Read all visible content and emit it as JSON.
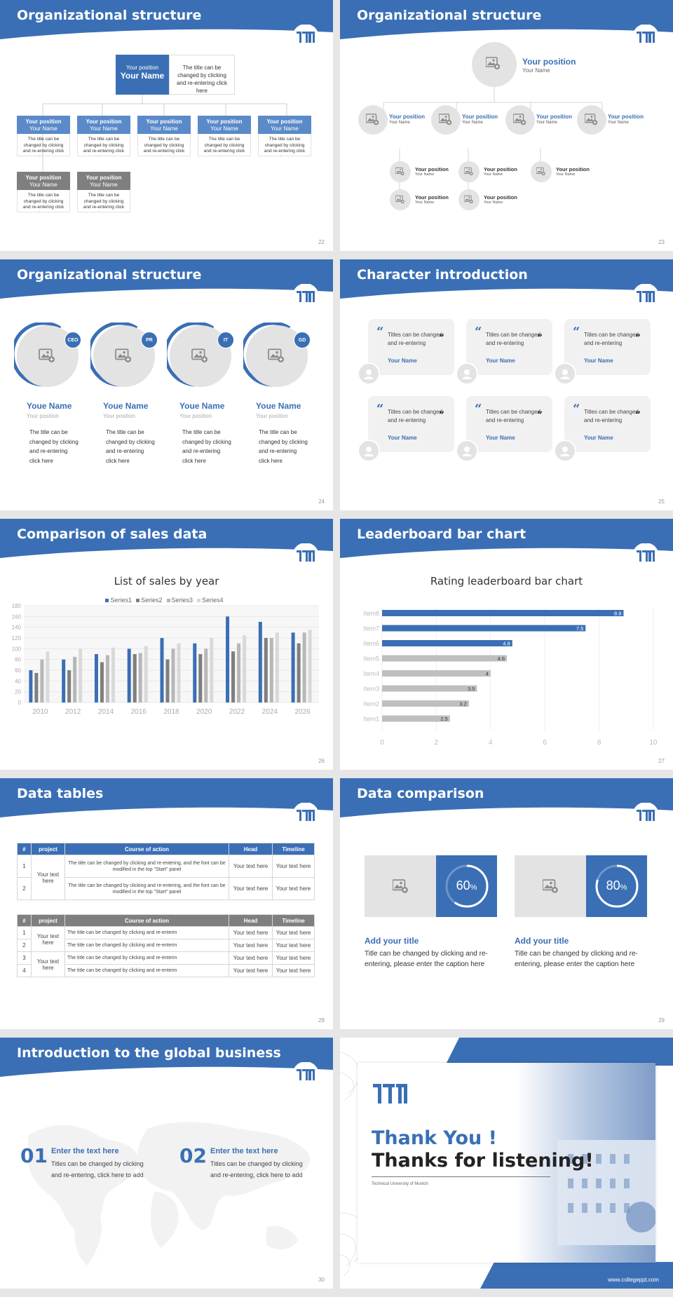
{
  "slides": [
    {
      "title": "Organizational structure",
      "num": "22"
    },
    {
      "title": "Organizational structure",
      "num": "23"
    },
    {
      "title": "Organizational structure",
      "num": "24"
    },
    {
      "title": "Character introduction",
      "num": "25"
    },
    {
      "title": "Comparison of sales data",
      "num": "26"
    },
    {
      "title": "Leaderboard bar chart",
      "num": "27"
    },
    {
      "title": "Data tables",
      "num": "28"
    },
    {
      "title": "Data comparison",
      "num": "29"
    },
    {
      "title": "Introduction to the global business",
      "num": "30"
    }
  ],
  "logo_text": "TUM",
  "org1": {
    "top_pos": "Your position",
    "top_name": "Your Name",
    "top_desc": "The title can be changed by clicking and re-entering click here",
    "box_pos": "Your position",
    "box_name": "Your Name",
    "box_desc": "The title can be changed by clicking and re-entering click here"
  },
  "org2": {
    "top_pos": "Your position",
    "top_name": "Your Name",
    "pos": "Your position",
    "name": "Your Name"
  },
  "org3": {
    "members": [
      {
        "badge": "CEO",
        "name": "Youe Name",
        "pos": "Your position",
        "desc": "The title can be changed by clicking and re-entering click here"
      },
      {
        "badge": "PR",
        "name": "Youe Name",
        "pos": "Your position",
        "desc": "The title can be changed by clicking and re-entering click here"
      },
      {
        "badge": "IT",
        "name": "Youe Name",
        "pos": "Your position",
        "desc": "The title can be changed by clicking and re-entering click here"
      },
      {
        "badge": "GD",
        "name": "Youe Name",
        "pos": "Your position",
        "desc": "The title can be changed by clicking and re-entering click here"
      }
    ]
  },
  "chars": {
    "text": "Titles can be changed and re-entering",
    "name": "Your Name"
  },
  "chart_data": [
    {
      "type": "bar",
      "title": "List of sales by year",
      "categories": [
        "2010",
        "2012",
        "2014",
        "2016",
        "2018",
        "2020",
        "2022",
        "2024",
        "2026"
      ],
      "ylim": [
        0,
        180
      ],
      "yticks": [
        0,
        20,
        40,
        60,
        80,
        100,
        120,
        140,
        160,
        180
      ],
      "series": [
        {
          "name": "Series1",
          "color": "#3a6fb5",
          "values": [
            60,
            80,
            90,
            100,
            120,
            110,
            160,
            150,
            130
          ]
        },
        {
          "name": "Series2",
          "color": "#7f7f7f",
          "values": [
            55,
            60,
            75,
            90,
            80,
            90,
            95,
            120,
            110
          ]
        },
        {
          "name": "Series3",
          "color": "#b7b7b7",
          "values": [
            80,
            85,
            88,
            92,
            100,
            100,
            110,
            120,
            130
          ]
        },
        {
          "name": "Series4",
          "color": "#d9d9d9",
          "values": [
            95,
            100,
            102,
            105,
            110,
            120,
            125,
            130,
            135
          ]
        }
      ],
      "legend": "top"
    },
    {
      "type": "bar",
      "orientation": "horizontal",
      "title": "Rating leaderboard bar chart",
      "categories": [
        "Item8",
        "Item7",
        "Item6",
        "Item5",
        "Item4",
        "Item3",
        "Item2",
        "Item1"
      ],
      "values": [
        8.9,
        7.5,
        4.8,
        4.6,
        4,
        3.5,
        3.2,
        2.5
      ],
      "xlim": [
        0,
        10
      ],
      "xticks": [
        0,
        2,
        4,
        6,
        8,
        10
      ]
    }
  ],
  "table": {
    "headers": [
      "#",
      "project",
      "Course of action",
      "Head",
      "Timeline"
    ],
    "t1_rows": [
      {
        "n": "1",
        "course": "The title can be changed by clicking and re-entering, and the font can be modified in the top \"Start\" panel",
        "head": "Your text here",
        "time": "Your text here"
      },
      {
        "n": "2",
        "course": "The title can be changed by clicking and re-entering, and the font can be modified in the top \"Start\" panel",
        "head": "Your text here",
        "time": "Your text here"
      }
    ],
    "project": "Your text here",
    "t2_rows": [
      {
        "n": "1",
        "course": "The title can be changed by clicking and re-enterin",
        "head": "Your text here",
        "time": "Your text here"
      },
      {
        "n": "2",
        "course": "The title can be changed by clicking and re-enterin",
        "head": "Your text here",
        "time": "Your text here"
      },
      {
        "n": "3",
        "course": "The title can be changed by clicking and re-enterin",
        "head": "Your text here",
        "time": "Your text here"
      },
      {
        "n": "4",
        "course": "The title can be changed by clicking and re-enterin",
        "head": "Your text here",
        "time": "Your text here"
      }
    ]
  },
  "compare": [
    {
      "pct": "60",
      "pct_value": 0.6,
      "unit": "%",
      "title": "Add your title",
      "desc": "Title can be changed by clicking and re-entering, please enter the caption here"
    },
    {
      "pct": "80",
      "pct_value": 0.8,
      "unit": "%",
      "title": "Add your title",
      "desc": "Title can be changed by clicking and re-entering, please enter the caption here"
    }
  ],
  "global": [
    {
      "num": "01",
      "title": "Enter the text here",
      "desc": "Titles can be changed by clicking and re-entering, click here to add"
    },
    {
      "num": "02",
      "title": "Enter the text here",
      "desc": "Titles can be changed by clicking and re-entering, click here to add"
    }
  ],
  "thanks": {
    "line1": "Thank You !",
    "line2": "Thanks for listening!",
    "sub": "Technical University of Munich",
    "url": "www.collegeppt.com"
  },
  "colors": {
    "accent": "#3a6fb5",
    "grey": "#7f7f7f",
    "light": "#e4e3e3"
  }
}
